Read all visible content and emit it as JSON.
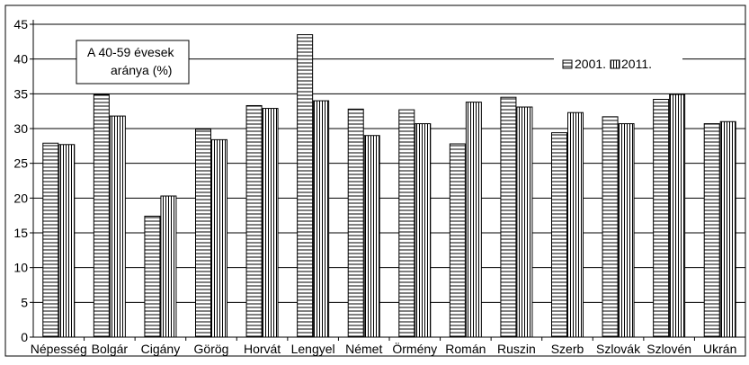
{
  "chart_data": {
    "type": "bar",
    "title": "",
    "annotation": [
      "A 40-59 évesek",
      "aránya (%)"
    ],
    "xlabel": "",
    "ylabel": "",
    "ylim": [
      0,
      45
    ],
    "yticks": [
      0,
      5,
      10,
      15,
      20,
      25,
      30,
      35,
      40,
      45
    ],
    "grid": true,
    "legend_position": "top-right",
    "categories": [
      "Népesség",
      "Bolgár",
      "Cigány",
      "Görög",
      "Horvát",
      "Lengyel",
      "Német",
      "Örmény",
      "Román",
      "Ruszin",
      "Szerb",
      "Szlovák",
      "Szlovén",
      "Ukrán"
    ],
    "series": [
      {
        "name": "2001.",
        "pattern": "horizontal-stripes",
        "values": [
          27.9,
          34.9,
          17.4,
          29.9,
          33.3,
          43.5,
          32.8,
          32.7,
          27.8,
          34.5,
          29.4,
          31.7,
          34.2,
          30.7
        ]
      },
      {
        "name": "2011.",
        "pattern": "vertical-stripes",
        "values": [
          27.7,
          31.8,
          20.3,
          28.4,
          32.9,
          34.0,
          29.0,
          30.7,
          33.8,
          33.1,
          32.3,
          30.7,
          34.9,
          31.0
        ]
      }
    ]
  }
}
